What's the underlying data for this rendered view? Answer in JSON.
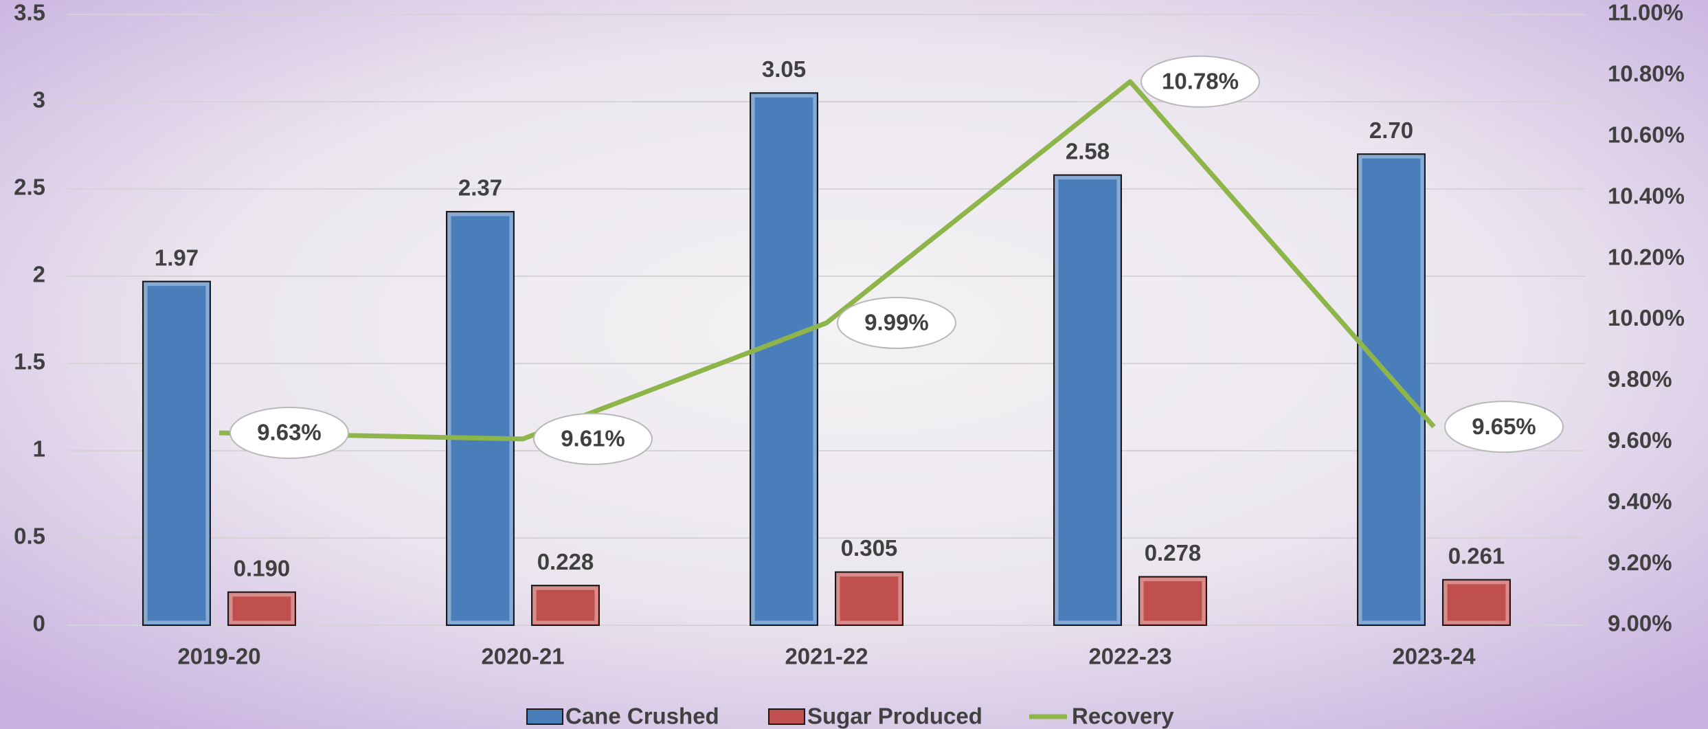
{
  "chart_data": {
    "type": "bar-line",
    "categories": [
      "2019-20",
      "2020-21",
      "2021-22",
      "2022-23",
      "2023-24"
    ],
    "series": [
      {
        "name": "Cane Crushed",
        "type": "bar",
        "color": "#4a7ebb",
        "values": [
          1.97,
          2.37,
          3.05,
          2.58,
          2.7
        ],
        "value_labels": [
          "1.97",
          "2.37",
          "3.05",
          "2.58",
          "2.70"
        ]
      },
      {
        "name": "Sugar Produced",
        "type": "bar",
        "color": "#c0504d",
        "values": [
          0.19,
          0.228,
          0.305,
          0.278,
          0.261
        ],
        "value_labels": [
          "0.190",
          "0.228",
          "0.305",
          "0.278",
          "0.261"
        ]
      },
      {
        "name": "Recovery",
        "type": "line",
        "axis": "y2",
        "color": "#8db54a",
        "values": [
          9.63,
          9.61,
          9.99,
          10.78,
          9.65
        ],
        "value_labels": [
          "9.63%",
          "9.61%",
          "9.99%",
          "10.78%",
          "9.65%"
        ]
      }
    ],
    "ylim": [
      0,
      3.5
    ],
    "yticks": [
      0,
      0.5,
      1,
      1.5,
      2,
      2.5,
      3,
      3.5
    ],
    "y2lim": [
      9,
      11
    ],
    "y2ticks": [
      {
        "value": 9,
        "label": "9.00%"
      },
      {
        "value": 9.2,
        "label": "9.20%"
      },
      {
        "value": 9.4,
        "label": "9.40%"
      },
      {
        "value": 9.6,
        "label": "9.60%"
      },
      {
        "value": 9.8,
        "label": "9.80%"
      },
      {
        "value": 10,
        "label": "10.00%"
      },
      {
        "value": 10.2,
        "label": "10.20%"
      },
      {
        "value": 10.4,
        "label": "10.40%"
      },
      {
        "value": 10.6,
        "label": "10.60%"
      },
      {
        "value": 10.8,
        "label": "10.80%"
      },
      {
        "value": 11,
        "label": "11.00%"
      }
    ],
    "grid": true
  }
}
